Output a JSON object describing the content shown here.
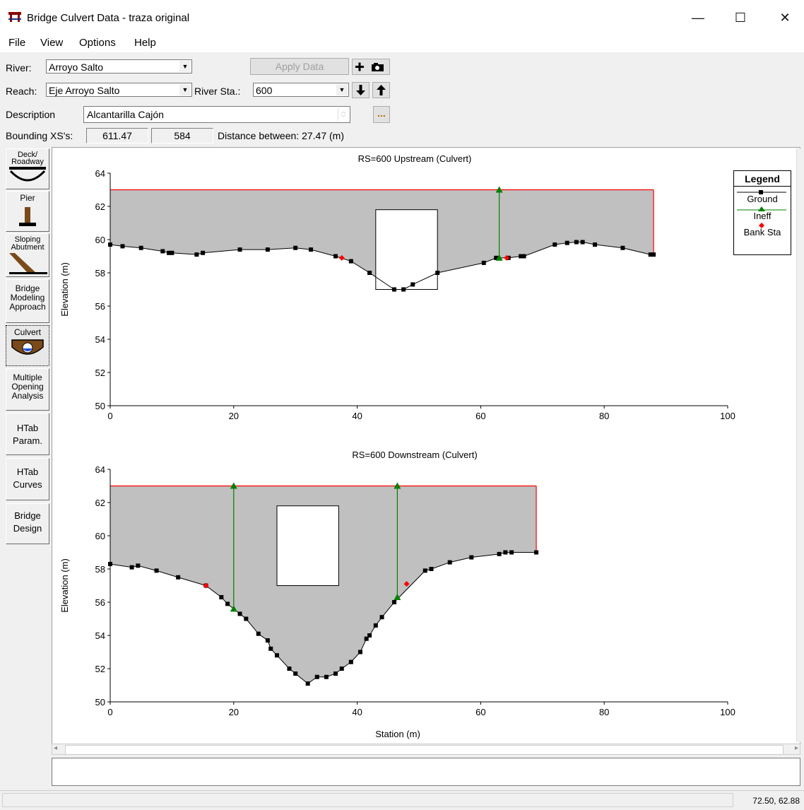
{
  "window": {
    "title": "Bridge Culvert Data - traza original",
    "minimize_glyph": "—",
    "maximize_glyph": "☐",
    "close_glyph": "✕"
  },
  "menu": [
    "File",
    "View",
    "Options",
    "Help"
  ],
  "toolbar": {
    "river_label": "River:",
    "river_value": "Arroyo Salto",
    "reach_label": "Reach:",
    "reach_value": "Eje Arroyo Salto",
    "river_sta_label": "River Sta.:",
    "river_sta_value": "600",
    "apply_label": "Apply Data",
    "description_label": "Description",
    "description_value": "Alcantarilla Cajón",
    "ellipsis_label": "...",
    "bounding_label": "Bounding XS's:",
    "bounding_upstream": "611.47",
    "bounding_downstream": "584",
    "distance_text": "Distance between: 27.47 (m)"
  },
  "sidebar": [
    {
      "label": "Deck/ Roadway",
      "icon": "deck-roadway-icon"
    },
    {
      "label": "Pier",
      "icon": "pier-icon"
    },
    {
      "label": "Sloping Abutment",
      "icon": "sloping-abutment-icon"
    },
    {
      "label": "Bridge Modeling Approach",
      "icon": ""
    },
    {
      "label": "Culvert",
      "icon": "culvert-icon",
      "active": true
    },
    {
      "label": "Multiple Opening Analysis",
      "icon": ""
    },
    {
      "label": "HTab Param.",
      "icon": ""
    },
    {
      "label": "HTab Curves",
      "icon": ""
    },
    {
      "label": "Bridge Design",
      "icon": ""
    }
  ],
  "legend": {
    "title": "Legend",
    "items": [
      "Ground",
      "Ineff",
      "Bank Sta"
    ]
  },
  "colors": {
    "ground": "#000000",
    "ineff": "#008000",
    "bank": "#ff0000",
    "top": "#ff0000",
    "fill": "#c0c0c0"
  },
  "chart_data": [
    {
      "type": "line",
      "title": "RS=600    Upstream  (Culvert)",
      "xlabel": "",
      "ylabel": "Elevation (m)",
      "xlim": [
        0,
        100
      ],
      "ylim": [
        50,
        64
      ],
      "xticks": [
        0,
        20,
        40,
        60,
        80,
        100
      ],
      "yticks": [
        50,
        52,
        54,
        56,
        58,
        60,
        62,
        64
      ],
      "grid": false,
      "top_elevation": 63,
      "series": [
        {
          "name": "Ground",
          "x": [
            0,
            2,
            5,
            8.5,
            9.5,
            10,
            14,
            15,
            21,
            25.5,
            30,
            32.5,
            36.5,
            39,
            42,
            46,
            47.5,
            49,
            53,
            60.5,
            62.5,
            64.5,
            66.5,
            67,
            72,
            74,
            75.5,
            76.5,
            78.5,
            83,
            87.5,
            88
          ],
          "y": [
            59.7,
            59.6,
            59.5,
            59.3,
            59.2,
            59.2,
            59.1,
            59.2,
            59.4,
            59.4,
            59.5,
            59.4,
            59.0,
            58.7,
            58.0,
            57.0,
            57.0,
            57.3,
            58.0,
            58.6,
            58.9,
            58.9,
            59.0,
            59.0,
            59.7,
            59.8,
            59.85,
            59.85,
            59.7,
            59.5,
            59.1,
            59.1
          ]
        },
        {
          "name": "Ineff",
          "points": [
            {
              "x": 63,
              "ytop": 63,
              "ybottom": 58.9
            }
          ]
        },
        {
          "name": "Bank Sta",
          "points": [
            {
              "x": 37.5,
              "y": 58.9
            },
            {
              "x": 64.2,
              "y": 58.9
            }
          ]
        }
      ],
      "culvert": {
        "x0": 43,
        "x1": 53,
        "y0": 57,
        "y1": 61.8
      }
    },
    {
      "type": "line",
      "title": "RS=600    Downstream  (Culvert)",
      "xlabel": "Station (m)",
      "ylabel": "Elevation (m)",
      "xlim": [
        0,
        100
      ],
      "ylim": [
        50,
        64
      ],
      "xticks": [
        0,
        20,
        40,
        60,
        80,
        100
      ],
      "yticks": [
        50,
        52,
        54,
        56,
        58,
        60,
        62,
        64
      ],
      "grid": false,
      "top_elevation": 63,
      "series": [
        {
          "name": "Ground",
          "x": [
            0,
            3.5,
            4.5,
            7.5,
            11,
            15.5,
            18,
            19,
            21,
            22,
            24,
            25.5,
            26,
            27,
            29,
            30,
            32,
            33.5,
            35,
            36.5,
            37.5,
            39,
            40.5,
            41.5,
            42,
            43,
            44,
            46,
            51,
            52,
            55,
            58.5,
            63,
            64,
            65,
            69
          ],
          "y": [
            58.3,
            58.1,
            58.2,
            57.9,
            57.5,
            57.0,
            56.3,
            55.9,
            55.3,
            55.0,
            54.1,
            53.7,
            53.2,
            52.8,
            52.0,
            51.7,
            51.1,
            51.5,
            51.5,
            51.7,
            52.0,
            52.4,
            53.0,
            53.8,
            54.0,
            54.6,
            55.1,
            56.0,
            57.9,
            58.0,
            58.4,
            58.7,
            58.9,
            59.0,
            59.0,
            59.0
          ]
        },
        {
          "name": "Ineff",
          "points": [
            {
              "x": 20,
              "ytop": 63,
              "ybottom": 55.6
            },
            {
              "x": 46.5,
              "ytop": 63,
              "ybottom": 56.3
            }
          ]
        },
        {
          "name": "Bank Sta",
          "points": [
            {
              "x": 15.5,
              "y": 57.0
            },
            {
              "x": 48,
              "y": 57.1
            }
          ]
        }
      ],
      "culvert": {
        "x0": 27,
        "x1": 37,
        "y0": 57,
        "y1": 61.8
      }
    }
  ],
  "status": {
    "coords": "72.50, 62.88"
  }
}
